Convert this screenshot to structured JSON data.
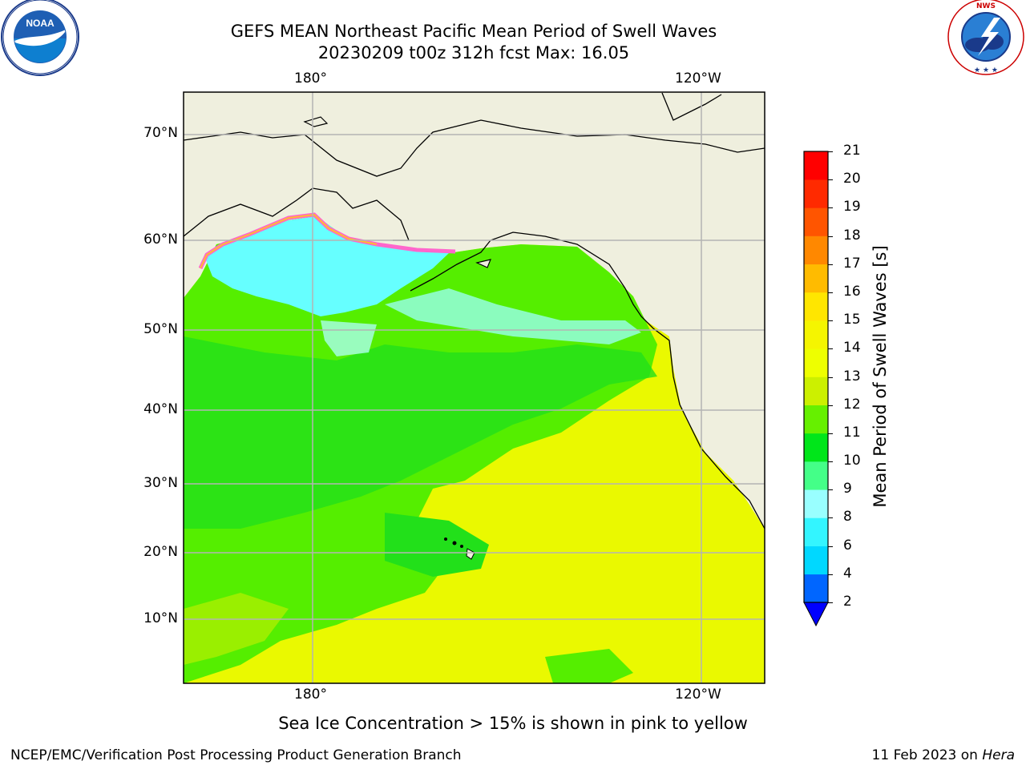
{
  "header": {
    "title_line1": "GEFS MEAN Northeast Pacific Mean Period of Swell Waves",
    "title_line2": "20230209 t00z 312h fcst   Max: 16.05"
  },
  "logos": {
    "left": "NOAA",
    "left_ring_text": "NATIONAL OCEANIC AND ATMOSPHERIC ADMINISTRATION · U.S. DEPARTMENT OF COMMERCE",
    "right_ring_text": "NATIONAL WEATHER SERVICE"
  },
  "map": {
    "lon_labels": [
      "180°",
      "120°W"
    ],
    "lat_labels": [
      "70°N",
      "60°N",
      "50°N",
      "40°N",
      "30°N",
      "20°N",
      "10°N"
    ],
    "ocean_period_field_s": {
      "north_of_55N": "8-9",
      "45N-55N": "9-11",
      "west_and_central_20N-45N": "10-12",
      "east_10N-45N": "13-16",
      "near_hawaii": "11-12"
    }
  },
  "colorbar": {
    "label": "Mean Period of Swell Waves [s]",
    "ticks": [
      "2",
      "4",
      "6",
      "8",
      "9",
      "10",
      "11",
      "12",
      "13",
      "14",
      "15",
      "16",
      "17",
      "18",
      "19",
      "20",
      "21"
    ],
    "colors": [
      "#0066ff",
      "#00d8ff",
      "#33f5ff",
      "#99ffff",
      "#44ff88",
      "#00e61a",
      "#66f000",
      "#ccf000",
      "#eeff00",
      "#f5f500",
      "#ffe600",
      "#ffbb00",
      "#ff8800",
      "#ff5500",
      "#ff2a00",
      "#ff0000"
    ],
    "extend_color": "#0000ff"
  },
  "footer": {
    "sea_ice_note": "Sea Ice Concentration > 15% is shown in pink to yellow",
    "credit": "NCEP/EMC/Verification Post Processing Product Generation Branch",
    "date_prefix": "11 Feb 2023 on ",
    "host": "Hera"
  },
  "colors": {
    "land": "#efefde",
    "gridline": "#b4b4b4"
  }
}
